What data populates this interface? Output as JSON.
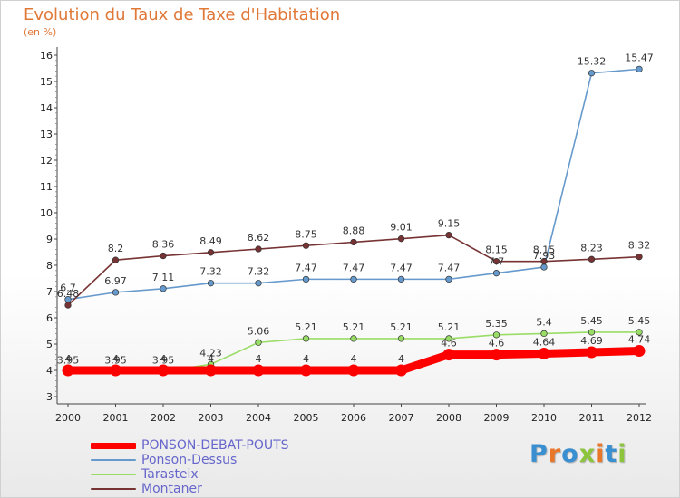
{
  "header": {
    "title": "Evolution du Taux de Taxe d'Habitation",
    "subtitle": "(en %)"
  },
  "logo": {
    "text": "Proxiti"
  },
  "chart_data": {
    "type": "line",
    "title": "Evolution du Taux de Taxe d'Habitation",
    "ylabel": "(en %)",
    "xlabel": "",
    "ylim": [
      3,
      16
    ],
    "yticks": [
      3,
      4,
      5,
      6,
      7,
      8,
      9,
      10,
      11,
      12,
      13,
      14,
      15,
      16
    ],
    "x": [
      "2000",
      "2001",
      "2002",
      "2003",
      "2004",
      "2005",
      "2006",
      "2007",
      "2008",
      "2009",
      "2010",
      "2011",
      "2012"
    ],
    "grid": false,
    "legend_position": "bottom-left",
    "series": [
      {
        "name": "PONSON-DEBAT-POUTS",
        "color": "#ff0000",
        "values": [
          4,
          4,
          4,
          4,
          4,
          4,
          4,
          4,
          4.6,
          4.6,
          4.64,
          4.69,
          4.74
        ],
        "labels": [
          "4",
          "4",
          "4",
          "4",
          "4",
          "4",
          "4",
          "4",
          "4.6",
          "4.6",
          "4.64",
          "4.69",
          "4.74"
        ]
      },
      {
        "name": "Ponson-Dessus",
        "color": "#6699cc",
        "values": [
          6.7,
          6.97,
          7.11,
          7.32,
          7.32,
          7.47,
          7.47,
          7.47,
          7.47,
          7.7,
          7.93,
          15.32,
          15.47
        ],
        "labels": [
          "6.7",
          "6.97",
          "7.11",
          "7.32",
          "7.32",
          "7.47",
          "7.47",
          "7.47",
          "7.47",
          "7.7",
          "7.93",
          "15.32",
          "15.47"
        ]
      },
      {
        "name": "Tarasteix",
        "color": "#99dd66",
        "values": [
          3.95,
          3.95,
          3.95,
          4.23,
          5.06,
          5.21,
          5.21,
          5.21,
          5.21,
          5.35,
          5.4,
          5.45,
          5.45
        ],
        "labels": [
          "3.95",
          "3.95",
          "3.95",
          "4.23",
          "5.06",
          "5.21",
          "5.21",
          "5.21",
          "5.21",
          "5.35",
          "5.4",
          "5.45",
          "5.45"
        ]
      },
      {
        "name": "Montaner",
        "color": "#773333",
        "values": [
          6.48,
          8.2,
          8.36,
          8.49,
          8.62,
          8.75,
          8.88,
          9.01,
          9.15,
          8.15,
          8.15,
          8.23,
          8.32
        ],
        "labels": [
          "6.48",
          "8.2",
          "8.36",
          "8.49",
          "8.62",
          "8.75",
          "8.88",
          "9.01",
          "9.15",
          "8.15",
          "8.15",
          "8.23",
          "8.32"
        ]
      }
    ]
  }
}
